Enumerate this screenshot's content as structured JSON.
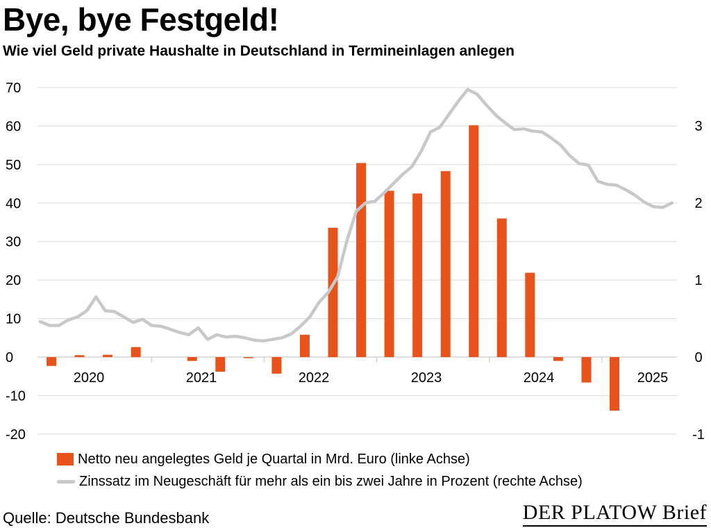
{
  "header": {
    "title": "Bye, bye Festgeld!",
    "subtitle": "Wie viel Geld private Haushalte in Deutschland in Termineinlagen anlegen"
  },
  "footer": {
    "source": "Quelle: Deutsche Bundesbank",
    "brand": "DER PLATOW Brief"
  },
  "colors": {
    "bar": "#e8531b",
    "line": "#c8c8c8",
    "grid": "#d9d9d9"
  },
  "chart_data": {
    "type": "bar",
    "title": "Bye, bye Festgeld!",
    "subtitle": "Wie viel Geld private Haushalte in Deutschland in Termineinlagen anlegen",
    "xlabel": "",
    "ylabel": "",
    "grid": true,
    "ylim": [
      -20,
      70
    ],
    "y_ticks": [
      "70",
      "60",
      "50",
      "40",
      "30",
      "20",
      "10",
      "0",
      "-10",
      "-20"
    ],
    "y2lim": [
      -1,
      3.5
    ],
    "y2_ticks": [
      "3",
      "2",
      "1",
      "0",
      "-1"
    ],
    "x_ticks": [
      "2020",
      "2021",
      "2022",
      "2023",
      "2024",
      "2025"
    ],
    "legend_position": "bottom",
    "series": [
      {
        "name": "Netto neu angelegtes Geld je Quartal in Mrd. Euro (linke Achse)",
        "type": "bar",
        "axis": "left",
        "categories": [
          "Q1 2020",
          "Q2 2020",
          "Q3 2020",
          "Q4 2020",
          "Q1 2021",
          "Q2 2021",
          "Q3 2021",
          "Q4 2021",
          "Q1 2022",
          "Q2 2022",
          "Q3 2022",
          "Q4 2022",
          "Q1 2023",
          "Q2 2023",
          "Q3 2023",
          "Q4 2023",
          "Q1 2024",
          "Q2 2024",
          "Q3 2024",
          "Q4 2024",
          "Q1 2025"
        ],
        "values": [
          -2.3,
          0.5,
          0.6,
          2.6,
          0,
          -1.0,
          -3.8,
          -0.2,
          -4.3,
          5.8,
          33.6,
          50.4,
          43.2,
          42.5,
          48.3,
          60.2,
          36.0,
          21.9,
          -1.0,
          -6.6,
          -13.9
        ]
      },
      {
        "name": "Zinssatz im Neugeschäft für mehr als ein bis zwei Jahre in Prozent (rechte Achse)",
        "type": "line",
        "axis": "right",
        "values": [
          0.46,
          0.41,
          0.41,
          0.48,
          0.52,
          0.6,
          0.78,
          0.6,
          0.59,
          0.52,
          0.45,
          0.49,
          0.41,
          0.4,
          0.36,
          0.32,
          0.29,
          0.38,
          0.23,
          0.29,
          0.26,
          0.27,
          0.25,
          0.22,
          0.21,
          0.23,
          0.25,
          0.3,
          0.4,
          0.52,
          0.71,
          0.84,
          1.04,
          1.51,
          1.89,
          2.0,
          2.02,
          2.13,
          2.25,
          2.37,
          2.47,
          2.67,
          2.92,
          2.98,
          3.15,
          3.32,
          3.47,
          3.41,
          3.27,
          3.14,
          3.04,
          2.95,
          2.96,
          2.93,
          2.92,
          2.84,
          2.75,
          2.61,
          2.51,
          2.49,
          2.28,
          2.24,
          2.23,
          2.17,
          2.1,
          2.01,
          1.95,
          1.94,
          2.0
        ]
      }
    ]
  }
}
